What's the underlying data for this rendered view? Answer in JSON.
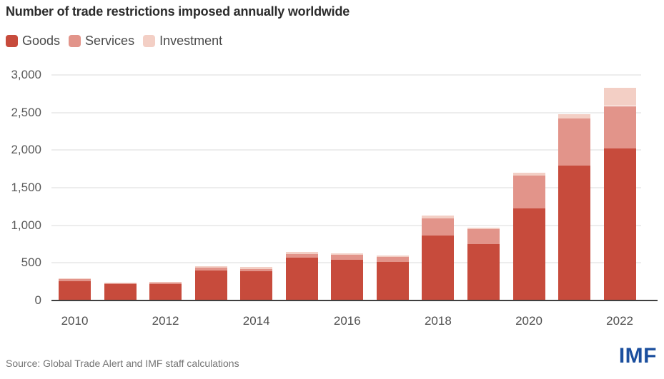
{
  "title": "Number of trade restrictions imposed annually worldwide",
  "source": "Source: Global Trade Alert and IMF staff calculations",
  "logo": "IMF",
  "colors": {
    "goods": "#c74b3c",
    "services": "#e2948a",
    "investment": "#f3cfc5",
    "gridline": "#ededed",
    "axis_line": "#3f3f3f",
    "axis_text": "#595959",
    "title_text": "#2b2b2b",
    "source_text": "#757575",
    "imf_blue": "#1b4f9e",
    "background": "#ffffff"
  },
  "chart_data": {
    "type": "bar",
    "stacked": true,
    "title": "Number of trade restrictions imposed annually worldwide",
    "categories": [
      "2010",
      "2011",
      "2012",
      "2013",
      "2014",
      "2015",
      "2016",
      "2017",
      "2018",
      "2019",
      "2020",
      "2021",
      "2022"
    ],
    "series": [
      {
        "name": "Goods",
        "color": "#c74b3c",
        "values": [
          255,
          220,
          215,
          400,
          385,
          565,
          545,
          508,
          868,
          750,
          1220,
          1795,
          2021
        ]
      },
      {
        "name": "Services",
        "color": "#e2948a",
        "values": [
          30,
          15,
          20,
          32,
          28,
          50,
          62,
          72,
          222,
          198,
          446,
          628,
          566
        ]
      },
      {
        "name": "Investment",
        "color": "#f3cfc5",
        "values": [
          10,
          7,
          8,
          20,
          30,
          28,
          16,
          15,
          38,
          25,
          38,
          57,
          246
        ]
      }
    ],
    "totals": [
      295,
      242,
      243,
      452,
      443,
      643,
      623,
      595,
      1128,
      973,
      1704,
      2480,
      2833
    ],
    "xlabel": "",
    "ylabel": "",
    "ylim": [
      0,
      3000
    ],
    "ytick_step": 500,
    "ytick_labels": [
      "0",
      "500",
      "1,000",
      "1,500",
      "2,000",
      "2,500",
      "3,000"
    ],
    "xtick_labels_shown": [
      "2010",
      "2012",
      "2014",
      "2016",
      "2018",
      "2020",
      "2022"
    ],
    "grid": "horizontal",
    "legend_position": "top-left"
  }
}
